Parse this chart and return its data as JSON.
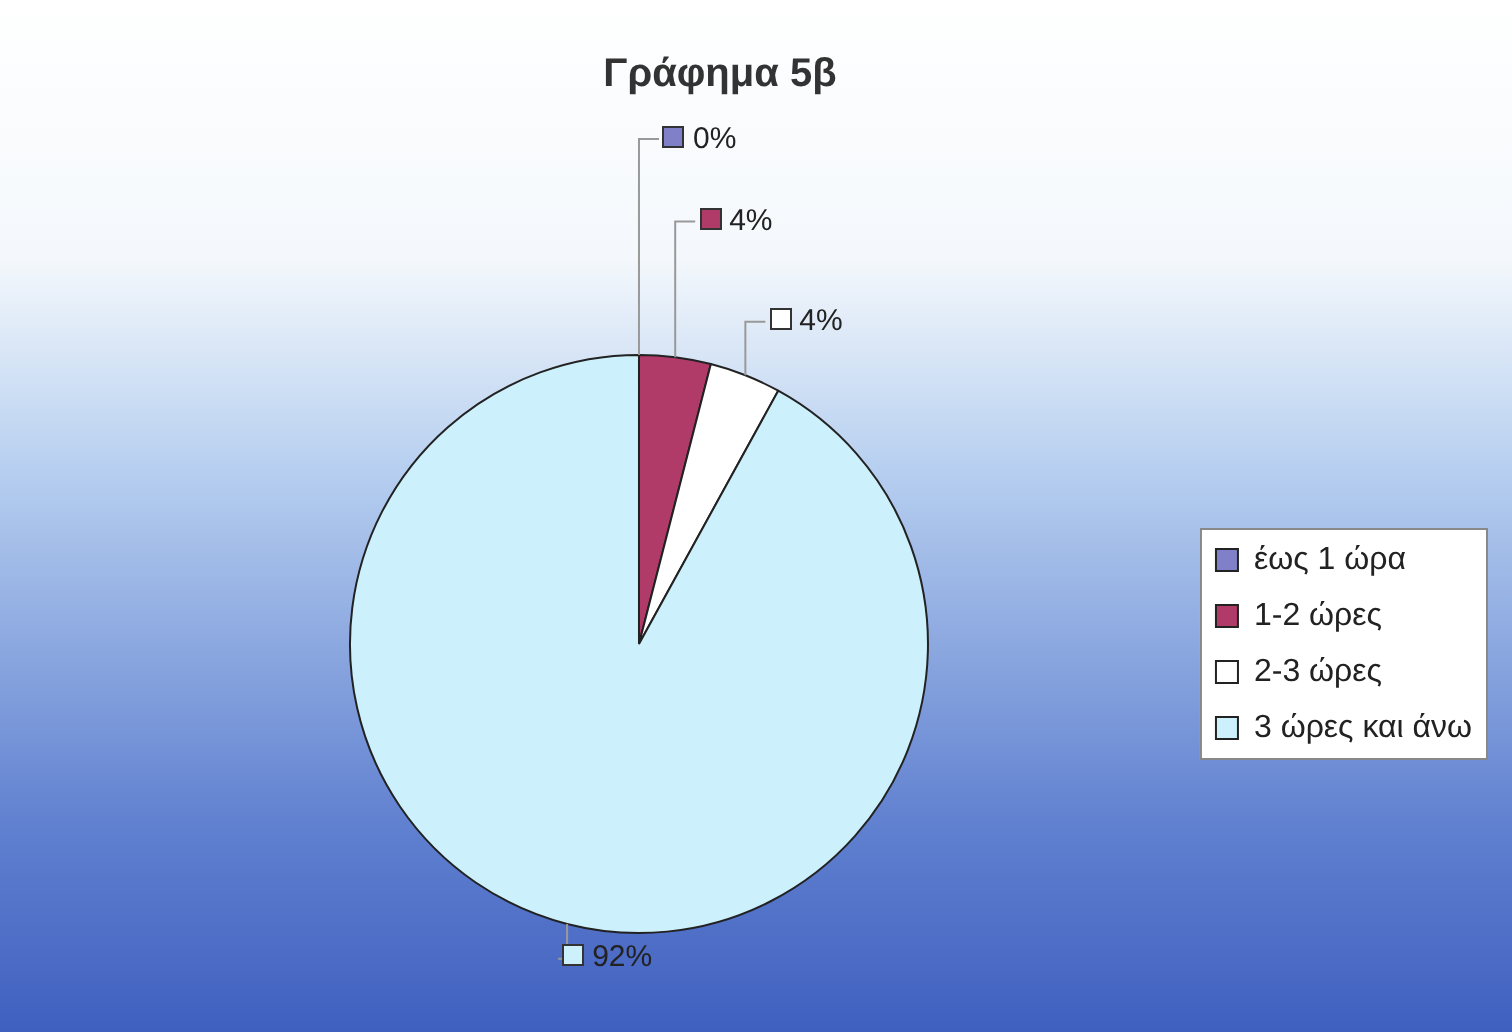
{
  "chart_data": {
    "type": "pie",
    "title": "Γράφημα 5β",
    "categories": [
      "έως 1 ώρα",
      "1-2 ώρες",
      "2-3 ώρες",
      "3 ώρες και άνω"
    ],
    "values": [
      0,
      4,
      4,
      92
    ],
    "colors": [
      "#8080c8",
      "#b03a68",
      "#ffffff",
      "#ccf0fc"
    ],
    "value_labels": [
      "0%",
      "4%",
      "4%",
      "92%"
    ],
    "legend": "right"
  }
}
